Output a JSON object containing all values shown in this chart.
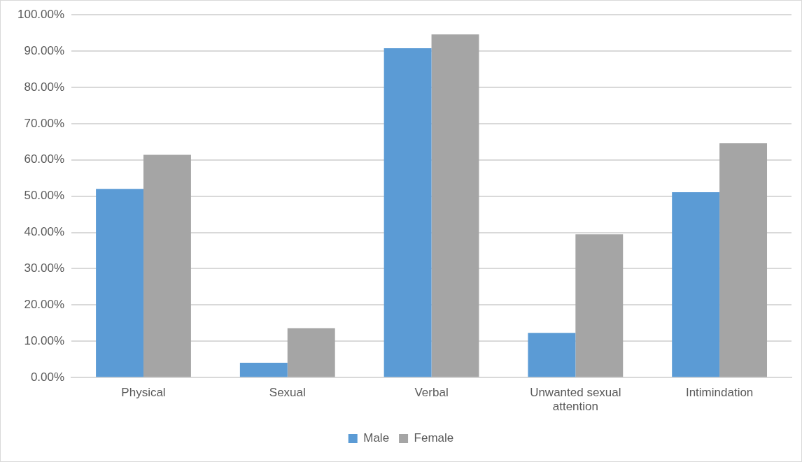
{
  "chart_data": {
    "type": "bar",
    "categories": [
      "Physical",
      "Sexual",
      "Verbal",
      "Unwanted sexual attention",
      "Intimindation"
    ],
    "series": [
      {
        "name": "Male",
        "color": "#5b9bd5",
        "values": [
          52.0,
          4.1,
          90.8,
          12.3,
          51.1
        ]
      },
      {
        "name": "Female",
        "color": "#a5a5a5",
        "values": [
          61.4,
          13.6,
          94.6,
          39.5,
          64.6
        ]
      }
    ],
    "ylim": [
      0,
      100
    ],
    "yticks": [
      {
        "value": 0,
        "label": "0.00%"
      },
      {
        "value": 10,
        "label": "10.00%"
      },
      {
        "value": 20,
        "label": "20.00%"
      },
      {
        "value": 30,
        "label": "30.00%"
      },
      {
        "value": 40,
        "label": "40.00%"
      },
      {
        "value": 50,
        "label": "50.00%"
      },
      {
        "value": 60,
        "label": "60.00%"
      },
      {
        "value": 70,
        "label": "70.00%"
      },
      {
        "value": 80,
        "label": "80.00%"
      },
      {
        "value": 90,
        "label": "90.00%"
      },
      {
        "value": 100,
        "label": "100.00%"
      }
    ],
    "grid": "y",
    "legend": "bottom"
  }
}
